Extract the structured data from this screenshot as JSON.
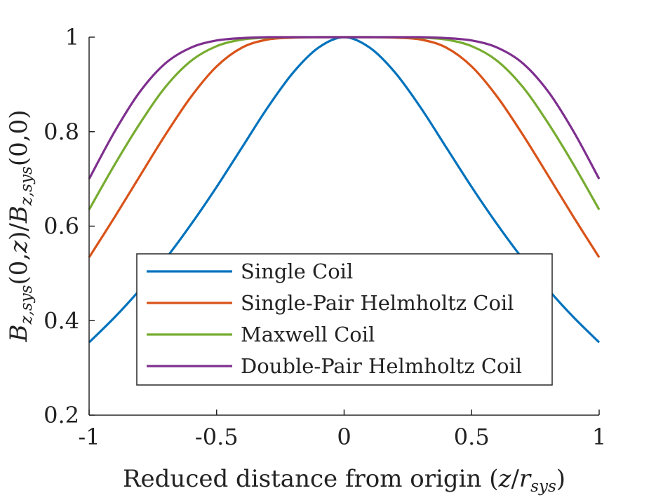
{
  "chart_data": {
    "type": "line",
    "title": "",
    "xlabel": "Reduced distance from origin (z/r_sys)",
    "ylabel": "B_z,sys(0,z)/B_z,sys(0,0)",
    "xlim": [
      -1,
      1
    ],
    "ylim": [
      0.2,
      1
    ],
    "xticks": [
      -1,
      -0.5,
      0,
      0.5,
      1
    ],
    "xtick_labels": [
      "-1",
      "-0.5",
      "0",
      "0.5",
      "1"
    ],
    "yticks": [
      0.2,
      0.4,
      0.6,
      0.8,
      1
    ],
    "ytick_labels": [
      "0.2",
      "0.4",
      "0.6",
      "0.8",
      "1"
    ],
    "grid": false,
    "legend_position": "bottom-center",
    "x": [
      -1,
      -0.9,
      -0.8,
      -0.7,
      -0.6,
      -0.5,
      -0.4,
      -0.3,
      -0.2,
      -0.1,
      0,
      0.1,
      0.2,
      0.3,
      0.4,
      0.5,
      0.6,
      0.7,
      0.8,
      0.9,
      1
    ],
    "series": [
      {
        "name": "Single Coil",
        "color": "#0072BD",
        "values": [
          0.354,
          0.407,
          0.466,
          0.531,
          0.604,
          0.683,
          0.767,
          0.851,
          0.925,
          0.978,
          1.0,
          0.978,
          0.925,
          0.851,
          0.767,
          0.683,
          0.604,
          0.531,
          0.466,
          0.407,
          0.354
        ]
      },
      {
        "name": "Single-Pair Helmholtz Coil",
        "color": "#D95319",
        "values": [
          0.534,
          0.619,
          0.707,
          0.794,
          0.874,
          0.938,
          0.978,
          0.995,
          0.999,
          1.0,
          1.0,
          1.0,
          0.999,
          0.995,
          0.978,
          0.938,
          0.874,
          0.794,
          0.707,
          0.619,
          0.534
        ]
      },
      {
        "name": "Maxwell Coil",
        "color": "#77AC30",
        "values": [
          0.635,
          0.73,
          0.818,
          0.895,
          0.95,
          0.981,
          0.995,
          0.999,
          1.0,
          1.0,
          1.0,
          1.0,
          1.0,
          0.999,
          0.995,
          0.981,
          0.95,
          0.895,
          0.818,
          0.73,
          0.635
        ]
      },
      {
        "name": "Double-Pair Helmholtz Coil",
        "color": "#7E2F8E",
        "values": [
          0.7,
          0.8,
          0.885,
          0.945,
          0.978,
          0.993,
          0.998,
          1.0,
          1.0,
          1.0,
          1.0,
          1.0,
          1.0,
          1.0,
          0.998,
          0.993,
          0.978,
          0.945,
          0.885,
          0.8,
          0.7
        ]
      }
    ]
  }
}
